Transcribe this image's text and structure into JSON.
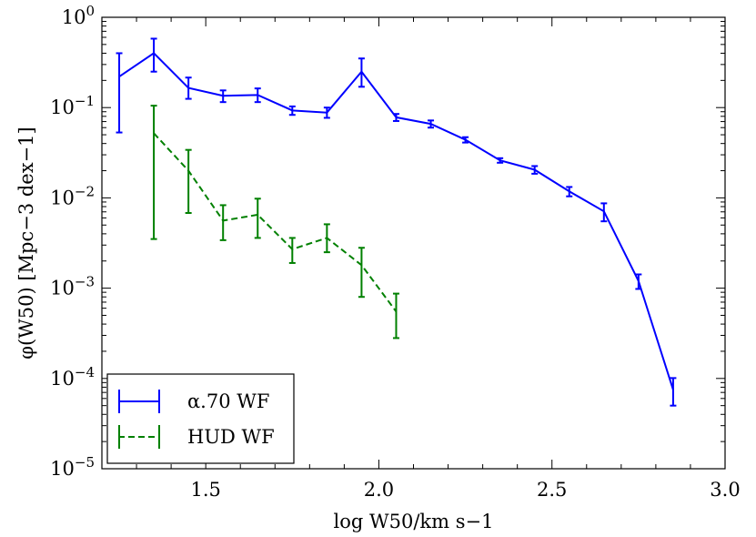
{
  "chart_data": {
    "type": "line",
    "title": "",
    "xlabel": "log W50/km s−1",
    "ylabel": "φ(W50) [Mpc−3 dex−1]",
    "xlim": [
      1.2,
      3.0
    ],
    "ylim": [
      1e-05,
      1
    ],
    "yscale": "log",
    "xticks": [
      {
        "value": 1.5,
        "label": "1.5"
      },
      {
        "value": 2.0,
        "label": "2.0"
      },
      {
        "value": 2.5,
        "label": "2.5"
      },
      {
        "value": 3.0,
        "label": "3.0"
      }
    ],
    "yticks": [
      {
        "value": 1,
        "base": "10",
        "exp": "0"
      },
      {
        "value": 0.1,
        "base": "10",
        "exp": "−1"
      },
      {
        "value": 0.01,
        "base": "10",
        "exp": "−2"
      },
      {
        "value": 0.001,
        "base": "10",
        "exp": "−3"
      },
      {
        "value": 0.0001,
        "base": "10",
        "exp": "−4"
      },
      {
        "value": 1e-05,
        "base": "10",
        "exp": "−5"
      }
    ],
    "legend_position": "lower-left",
    "series": [
      {
        "name": "α.70 WF",
        "color": "#0000ff",
        "dash": "solid",
        "x": [
          1.25,
          1.35,
          1.45,
          1.55,
          1.65,
          1.75,
          1.85,
          1.95,
          2.05,
          2.15,
          2.25,
          2.35,
          2.45,
          2.55,
          2.65,
          2.75,
          2.85
        ],
        "y": [
          0.22,
          0.4,
          0.165,
          0.135,
          0.138,
          0.093,
          0.088,
          0.25,
          0.078,
          0.066,
          0.044,
          0.026,
          0.0205,
          0.0118,
          0.0071,
          0.0012,
          7.5e-05
        ],
        "err_low": [
          0.053,
          0.25,
          0.125,
          0.115,
          0.115,
          0.083,
          0.077,
          0.17,
          0.071,
          0.06,
          0.041,
          0.0245,
          0.0185,
          0.0104,
          0.0055,
          0.00098,
          5e-05
        ],
        "err_high": [
          0.4,
          0.58,
          0.215,
          0.155,
          0.163,
          0.103,
          0.1,
          0.35,
          0.085,
          0.072,
          0.047,
          0.0275,
          0.0225,
          0.0132,
          0.0087,
          0.00142,
          0.000101
        ]
      },
      {
        "name": "HUD WF",
        "color": "#008000",
        "dash": "dashed",
        "x": [
          1.35,
          1.45,
          1.55,
          1.65,
          1.75,
          1.85,
          1.95,
          2.05
        ],
        "y": [
          0.052,
          0.02,
          0.0056,
          0.0065,
          0.0027,
          0.0036,
          0.0018,
          0.00055
        ],
        "err_low": [
          0.0035,
          0.0068,
          0.0034,
          0.0036,
          0.0019,
          0.0025,
          0.0008,
          0.00028
        ],
        "err_high": [
          0.105,
          0.034,
          0.0083,
          0.0098,
          0.0036,
          0.0051,
          0.0028,
          0.00087
        ]
      }
    ]
  },
  "colors": {
    "series1": "#0000ff",
    "series2": "#008000",
    "axes": "#000000"
  }
}
